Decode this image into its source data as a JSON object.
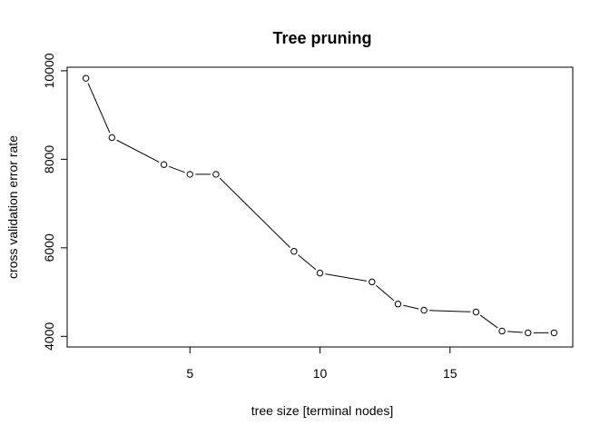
{
  "chart_data": {
    "type": "line",
    "title": "Tree pruning",
    "xlabel": "tree size [terminal nodes]",
    "ylabel": "cross validation error rate",
    "xlim": [
      0.28,
      19.72
    ],
    "ylim": [
      3760,
      10080
    ],
    "xticks": [
      5,
      10,
      15
    ],
    "yticks": [
      4000,
      6000,
      8000,
      10000
    ],
    "grid": false,
    "legend": "none",
    "markers": "open-circle",
    "line_color": "#000000",
    "series": [
      {
        "x": [
          1,
          2,
          4,
          5,
          6,
          9,
          10,
          12,
          13,
          14,
          16,
          17,
          18,
          19
        ],
        "y": [
          9830,
          8490,
          7880,
          7660,
          7660,
          5920,
          5430,
          5230,
          4730,
          4590,
          4550,
          4120,
          4080,
          4080
        ]
      }
    ]
  }
}
